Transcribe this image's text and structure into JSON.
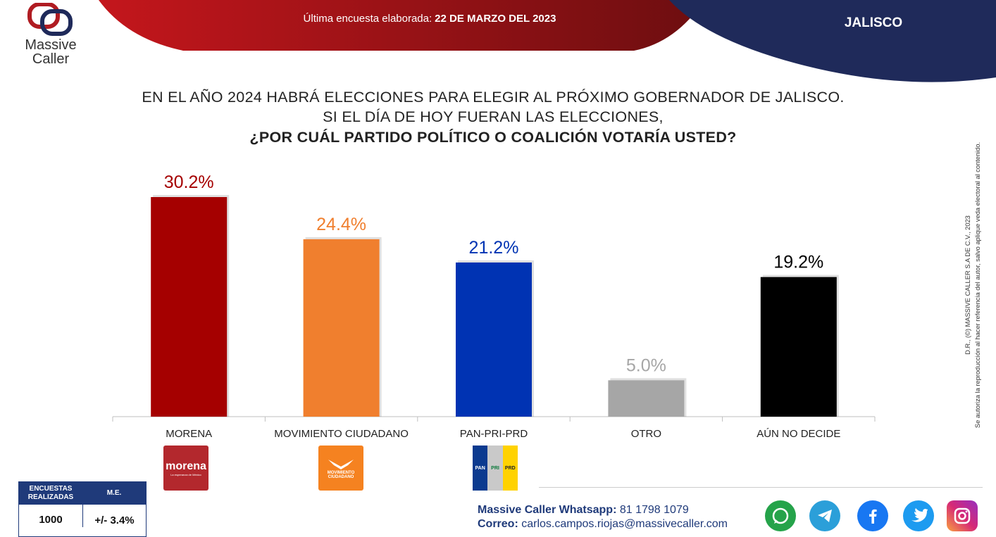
{
  "header": {
    "survey_label": "Última encuesta elaborada:",
    "survey_date": "22 DE MARZO DEL 2023",
    "state": "JALISCO",
    "logo_main": "Massive",
    "logo_sub": "Caller"
  },
  "question": {
    "line1": "EN EL AÑO 2024 HABRÁ ELECCIONES PARA ELEGIR AL PRÓXIMO GOBERNADOR DE JALISCO.",
    "line2": "SI EL DÍA DE HOY FUERAN LAS ELECCIONES,",
    "line3": "¿POR CUÁL PARTIDO POLÍTICO O COALICIÓN VOTARÍA USTED?"
  },
  "chart_data": {
    "type": "bar",
    "categories": [
      "MORENA",
      "MOVIMIENTO CIUDADANO",
      "PAN-PRI-PRD",
      "OTRO",
      "AÚN NO DECIDE"
    ],
    "values": [
      30.2,
      24.4,
      21.2,
      5.0,
      19.2
    ],
    "value_labels": [
      "30.2%",
      "24.4%",
      "21.2%",
      "5.0%",
      "19.2%"
    ],
    "colors": [
      "#a50000",
      "#f07f2e",
      "#0033b3",
      "#a6a6a6",
      "#000000"
    ],
    "label_colors": [
      "#a50000",
      "#f07f2e",
      "#0033b3",
      "#a6a6a6",
      "#000000"
    ],
    "ylim": [
      0,
      30.2
    ],
    "grid": false,
    "legend": "none"
  },
  "party_logos": {
    "morena": "morena",
    "morena_tag": "La esperanza de México",
    "mc": "MOVIMIENTO CIUDADANO",
    "pan": "PAN",
    "pri": "PRI",
    "prd": "PRD"
  },
  "stats": {
    "h1": "ENCUESTAS REALIZADAS",
    "h2": "M.E.",
    "v1": "1000",
    "v2": "+/- 3.4%"
  },
  "contact": {
    "whatsapp_label": "Massive Caller Whatsapp:",
    "whatsapp_value": "81 1798 1079",
    "email_label": "Correo:",
    "email_value": "carlos.campos.riojas@massivecaller.com"
  },
  "copyright": {
    "line1": "D.R., (©) MASSIVE CALLER S.A DE C.V., 2023",
    "line2": "Se autoriza la reproducción al hacer referencia del autor, salvo aplique veda electoral al contenido."
  },
  "social": {
    "colors": {
      "whatsapp": "#25a34a",
      "telegram": "#2b9fd9",
      "facebook": "#1877f2",
      "twitter": "#1d9bf0",
      "instagram": "#d62976"
    },
    "icons": [
      "whatsapp-icon",
      "telegram-icon",
      "facebook-icon",
      "twitter-icon",
      "instagram-icon"
    ]
  }
}
